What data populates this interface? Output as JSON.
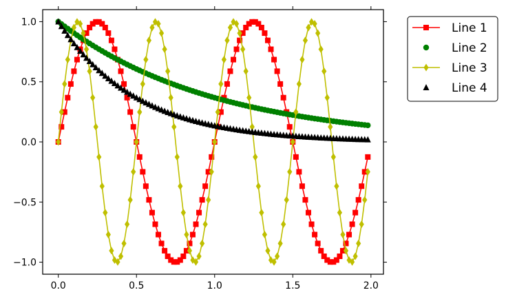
{
  "chart_data": {
    "type": "line",
    "title": "",
    "xlabel": "",
    "ylabel": "",
    "xlim": [
      -0.1,
      2.08
    ],
    "ylim": [
      -1.1,
      1.1
    ],
    "grid": false,
    "legend_position": "outside-top-right",
    "x_ticks": [
      0.0,
      0.5,
      1.0,
      1.5,
      2.0
    ],
    "x_tick_labels": [
      "0.0",
      "0.5",
      "1.0",
      "1.5",
      "2.0"
    ],
    "y_ticks": [
      -1.0,
      -0.5,
      0.0,
      0.5,
      1.0
    ],
    "y_tick_labels": [
      "−1.0",
      "−0.5",
      "0.0",
      "0.5",
      "1.0"
    ],
    "x": [
      0.0,
      0.02,
      0.04,
      0.06,
      0.08,
      0.1,
      0.12,
      0.14,
      0.16,
      0.18,
      0.2,
      0.22,
      0.24,
      0.26,
      0.28,
      0.3,
      0.32,
      0.34,
      0.36,
      0.38,
      0.4,
      0.42,
      0.44,
      0.46,
      0.48,
      0.5,
      0.52,
      0.54,
      0.56,
      0.58,
      0.6,
      0.62,
      0.64,
      0.66,
      0.68,
      0.7,
      0.72,
      0.74,
      0.76,
      0.78,
      0.8,
      0.82,
      0.84,
      0.86,
      0.88,
      0.9,
      0.92,
      0.94,
      0.96,
      0.98,
      1.0,
      1.02,
      1.04,
      1.06,
      1.08,
      1.1,
      1.12,
      1.14,
      1.16,
      1.18,
      1.2,
      1.22,
      1.24,
      1.26,
      1.28,
      1.3,
      1.32,
      1.34,
      1.36,
      1.38,
      1.4,
      1.42,
      1.44,
      1.46,
      1.48,
      1.5,
      1.52,
      1.54,
      1.56,
      1.58,
      1.6,
      1.62,
      1.64,
      1.66,
      1.68,
      1.7,
      1.72,
      1.74,
      1.76,
      1.78,
      1.8,
      1.82,
      1.84,
      1.86,
      1.88,
      1.9,
      1.92,
      1.94,
      1.96,
      1.98
    ],
    "series": [
      {
        "name": "Line 1",
        "color": "#ff0000",
        "marker": "square",
        "line": true,
        "values": [
          0.0,
          0.1253,
          0.2487,
          0.3681,
          0.4818,
          0.5878,
          0.6845,
          0.7705,
          0.8443,
          0.9048,
          0.9511,
          0.9823,
          0.998,
          0.998,
          0.9823,
          0.9511,
          0.9048,
          0.8443,
          0.7705,
          0.6845,
          0.5878,
          0.4818,
          0.3681,
          0.2487,
          0.1253,
          0.0,
          -0.1253,
          -0.2487,
          -0.3681,
          -0.4818,
          -0.5878,
          -0.6845,
          -0.7705,
          -0.8443,
          -0.9048,
          -0.9511,
          -0.9823,
          -0.998,
          -0.998,
          -0.9823,
          -0.9511,
          -0.9048,
          -0.8443,
          -0.7705,
          -0.6845,
          -0.5878,
          -0.4818,
          -0.3681,
          -0.2487,
          -0.1253,
          0.0,
          0.1253,
          0.2487,
          0.3681,
          0.4818,
          0.5878,
          0.6845,
          0.7705,
          0.8443,
          0.9048,
          0.9511,
          0.9823,
          0.998,
          0.998,
          0.9823,
          0.9511,
          0.9048,
          0.8443,
          0.7705,
          0.6845,
          0.5878,
          0.4818,
          0.3681,
          0.2487,
          0.1253,
          0.0,
          -0.1253,
          -0.2487,
          -0.3681,
          -0.4818,
          -0.5878,
          -0.6845,
          -0.7705,
          -0.8443,
          -0.9048,
          -0.9511,
          -0.9823,
          -0.998,
          -0.998,
          -0.9823,
          -0.9511,
          -0.9048,
          -0.8443,
          -0.7705,
          -0.6845,
          -0.5878,
          -0.4818,
          -0.3681,
          -0.2487,
          -0.1253
        ]
      },
      {
        "name": "Line 2",
        "color": "#008000",
        "marker": "circle",
        "line": false,
        "values": [
          1.0,
          0.9802,
          0.9608,
          0.9418,
          0.9231,
          0.9048,
          0.8869,
          0.8694,
          0.8521,
          0.8353,
          0.8187,
          0.8025,
          0.7866,
          0.7711,
          0.7558,
          0.7408,
          0.7261,
          0.7118,
          0.6977,
          0.6839,
          0.6703,
          0.657,
          0.644,
          0.6313,
          0.6188,
          0.6065,
          0.5945,
          0.5827,
          0.5712,
          0.5599,
          0.5488,
          0.5379,
          0.5273,
          0.5169,
          0.5066,
          0.4966,
          0.4868,
          0.4771,
          0.4677,
          0.4584,
          0.4493,
          0.4404,
          0.4317,
          0.4232,
          0.4148,
          0.4066,
          0.3985,
          0.3906,
          0.3829,
          0.3753,
          0.3679,
          0.3606,
          0.3535,
          0.3465,
          0.3396,
          0.3329,
          0.3263,
          0.3198,
          0.3135,
          0.3073,
          0.3012,
          0.2952,
          0.2894,
          0.2837,
          0.278,
          0.2725,
          0.2671,
          0.2618,
          0.2567,
          0.2516,
          0.2466,
          0.2417,
          0.2369,
          0.2322,
          0.2276,
          0.2231,
          0.2187,
          0.2144,
          0.2101,
          0.206,
          0.2019,
          0.1979,
          0.194,
          0.1901,
          0.1864,
          0.1827,
          0.1791,
          0.1755,
          0.172,
          0.1686,
          0.1653,
          0.162,
          0.1588,
          0.1557,
          0.1526,
          0.1496,
          0.1466,
          0.1437,
          0.1409,
          0.1381
        ]
      },
      {
        "name": "Line 3",
        "color": "#bfbf00",
        "marker": "diamond",
        "line": true,
        "values": [
          0.0,
          0.2487,
          0.4818,
          0.6845,
          0.8443,
          0.9511,
          0.998,
          0.9823,
          0.9048,
          0.7705,
          0.5878,
          0.3681,
          0.1253,
          -0.1253,
          -0.3681,
          -0.5878,
          -0.7705,
          -0.9048,
          -0.9823,
          -0.998,
          -0.9511,
          -0.8443,
          -0.6845,
          -0.4818,
          -0.2487,
          0.0,
          0.2487,
          0.4818,
          0.6845,
          0.8443,
          0.9511,
          0.998,
          0.9823,
          0.9048,
          0.7705,
          0.5878,
          0.3681,
          0.1253,
          -0.1253,
          -0.3681,
          -0.5878,
          -0.7705,
          -0.9048,
          -0.9823,
          -0.998,
          -0.9511,
          -0.8443,
          -0.6845,
          -0.4818,
          -0.2487,
          0.0,
          0.2487,
          0.4818,
          0.6845,
          0.8443,
          0.9511,
          0.998,
          0.9823,
          0.9048,
          0.7705,
          0.5878,
          0.3681,
          0.1253,
          -0.1253,
          -0.3681,
          -0.5878,
          -0.7705,
          -0.9048,
          -0.9823,
          -0.998,
          -0.9511,
          -0.8443,
          -0.6845,
          -0.4818,
          -0.2487,
          0.0,
          0.2487,
          0.4818,
          0.6845,
          0.8443,
          0.9511,
          0.998,
          0.9823,
          0.9048,
          0.7705,
          0.5878,
          0.3681,
          0.1253,
          -0.1253,
          -0.3681,
          -0.5878,
          -0.7705,
          -0.9048,
          -0.9823,
          -0.998,
          -0.9511,
          -0.8443,
          -0.6845,
          -0.4818,
          -0.2487
        ]
      },
      {
        "name": "Line 4",
        "color": "#000000",
        "marker": "triangle",
        "line": false,
        "values": [
          1.0,
          0.9608,
          0.9231,
          0.8869,
          0.8521,
          0.8187,
          0.7866,
          0.7558,
          0.7261,
          0.6977,
          0.6703,
          0.644,
          0.6188,
          0.5945,
          0.5712,
          0.5488,
          0.5273,
          0.5066,
          0.4868,
          0.4677,
          0.4493,
          0.4317,
          0.4148,
          0.3985,
          0.3829,
          0.3679,
          0.3535,
          0.3396,
          0.3263,
          0.3135,
          0.3012,
          0.2894,
          0.278,
          0.2671,
          0.2567,
          0.2466,
          0.2369,
          0.2276,
          0.2187,
          0.2101,
          0.2019,
          0.194,
          0.1864,
          0.1791,
          0.172,
          0.1653,
          0.1588,
          0.1526,
          0.1466,
          0.1409,
          0.1353,
          0.13,
          0.1249,
          0.12,
          0.1153,
          0.1108,
          0.1065,
          0.1023,
          0.0983,
          0.0944,
          0.0907,
          0.0872,
          0.0837,
          0.0805,
          0.0773,
          0.0743,
          0.0714,
          0.0686,
          0.0659,
          0.0633,
          0.0608,
          0.0584,
          0.0561,
          0.0539,
          0.0518,
          0.0498,
          0.0478,
          0.046,
          0.0442,
          0.0424,
          0.0408,
          0.0392,
          0.0376,
          0.0362,
          0.0347,
          0.0334,
          0.0321,
          0.0308,
          0.0296,
          0.0284,
          0.0273,
          0.0263,
          0.0252,
          0.0242,
          0.0233,
          0.0224,
          0.0215,
          0.0207,
          0.0198,
          0.0191
        ]
      }
    ]
  }
}
